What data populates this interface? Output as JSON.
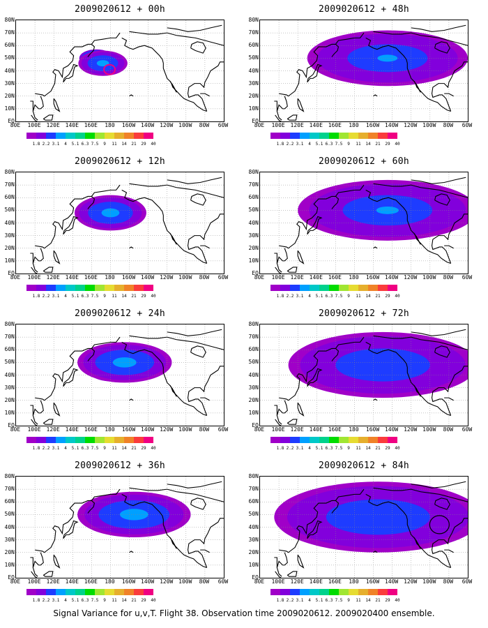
{
  "footer": "Signal Variance for u,v,T. Flight 38. Observation time 2009020612. 2009020400 ensemble.",
  "lat_labels": [
    "80N",
    "70N",
    "60N",
    "50N",
    "40N",
    "30N",
    "20N",
    "10N",
    "EQ"
  ],
  "lon_labels": [
    "80E",
    "100E",
    "120E",
    "140E",
    "160E",
    "180",
    "160W",
    "140W",
    "120W",
    "100W",
    "80W",
    "60W"
  ],
  "colorbar": {
    "labels": [
      "1.8",
      "2.2",
      "3.1",
      "4",
      "5.1",
      "6.3",
      "7.5",
      "9",
      "11",
      "14",
      "21",
      "29",
      "40"
    ],
    "colors": [
      "#a000c8",
      "#8200dc",
      "#1e3cff",
      "#00a0ff",
      "#00c8c8",
      "#00d28c",
      "#00dc00",
      "#a0e632",
      "#e6dc32",
      "#e6af2d",
      "#f08228",
      "#fa3c3c",
      "#f00082"
    ]
  },
  "panels": [
    {
      "title": "2009020612 + 00h",
      "lead": 0
    },
    {
      "title": "2009020612 + 48h",
      "lead": 48
    },
    {
      "title": "2009020612 + 12h",
      "lead": 12
    },
    {
      "title": "2009020612 + 60h",
      "lead": 60
    },
    {
      "title": "2009020612 + 24h",
      "lead": 24
    },
    {
      "title": "2009020612 + 72h",
      "lead": 72
    },
    {
      "title": "2009020612 + 36h",
      "lead": 36
    },
    {
      "title": "2009020612 + 84h",
      "lead": 84
    }
  ]
}
